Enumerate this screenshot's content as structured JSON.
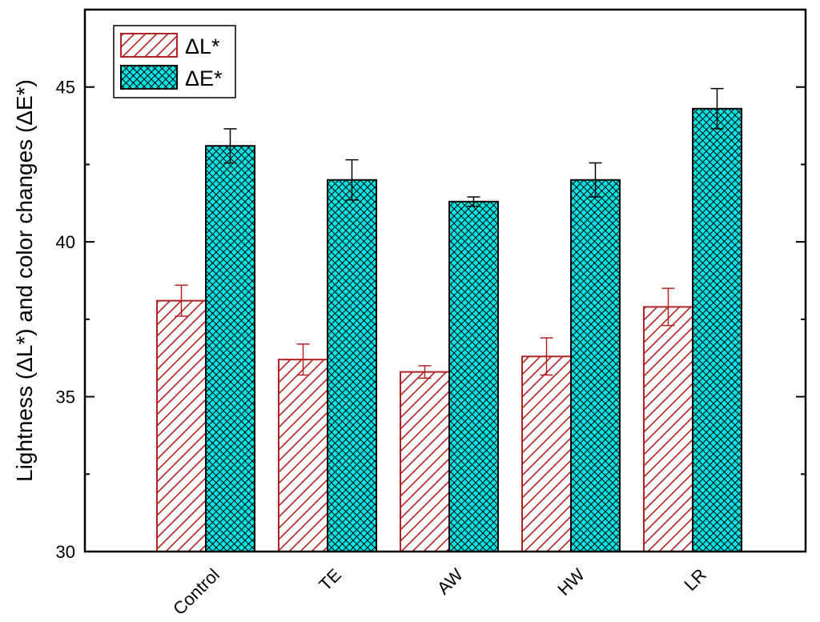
{
  "chart_data": {
    "type": "bar",
    "categories": [
      "Control",
      "TE",
      "AW",
      "HW",
      "LR"
    ],
    "series": [
      {
        "name": "ΔL*",
        "values": [
          38.1,
          36.2,
          35.8,
          36.3,
          37.9
        ],
        "errors": [
          0.5,
          0.5,
          0.2,
          0.6,
          0.6
        ],
        "color": "#b22222",
        "fill": "#ffffff",
        "pattern": "diagonal-hatch"
      },
      {
        "name": "ΔE*",
        "values": [
          43.1,
          42.0,
          41.3,
          42.0,
          44.3
        ],
        "errors": [
          0.55,
          0.65,
          0.15,
          0.55,
          0.65
        ],
        "color": "#000000",
        "fill": "#00e5e5",
        "pattern": "crosshatch"
      }
    ],
    "ylabel": "Lightness (ΔL*) and color changes (ΔE*)",
    "xlabel": "",
    "ylim": [
      30,
      47.5
    ],
    "yticks": [
      30,
      35,
      40,
      45
    ],
    "legend_position": "top-left",
    "grid": false
  }
}
